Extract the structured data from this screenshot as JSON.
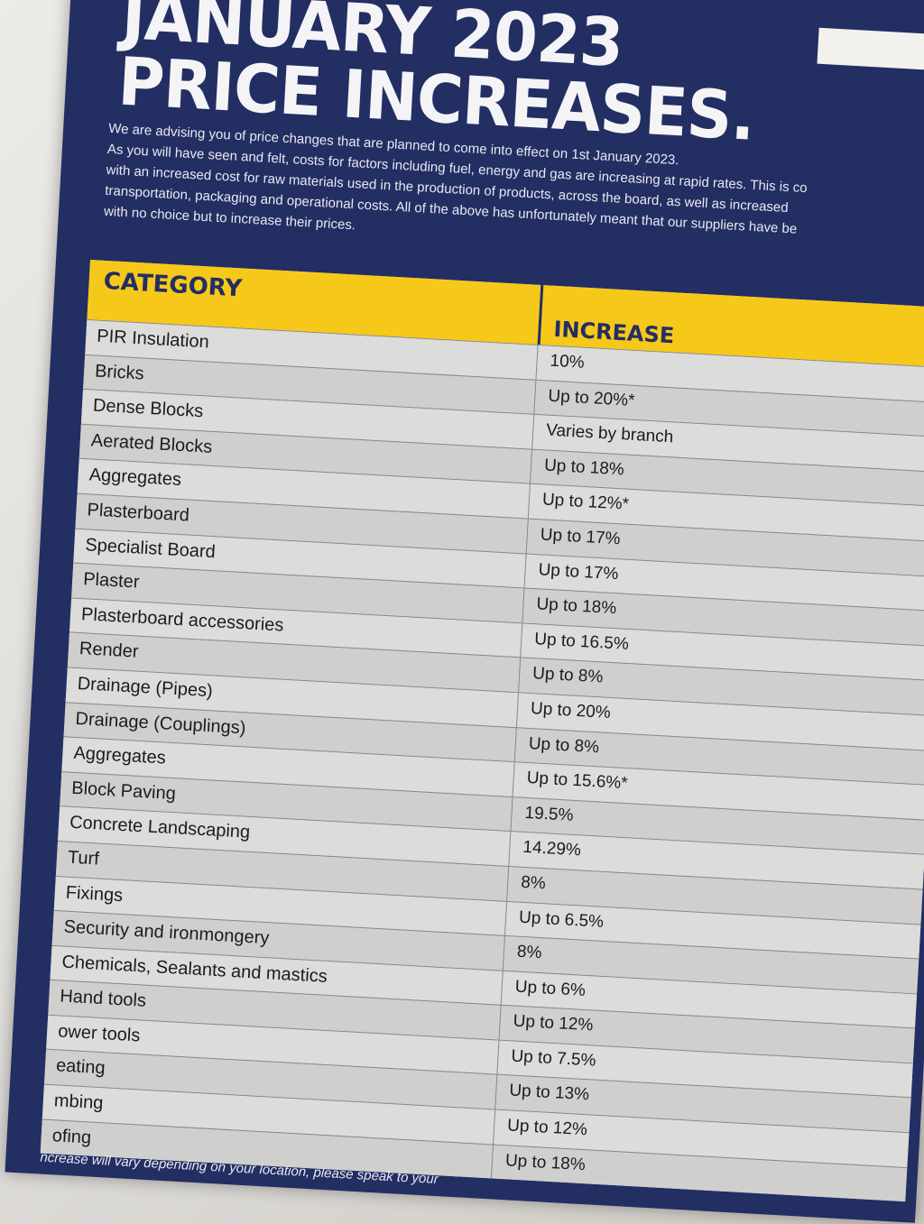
{
  "title_lines": [
    "JANUARY 2023",
    "PRICE INCREASES."
  ],
  "intro": [
    "We are advising you of price changes that are planned to come into effect on 1st January 2023.",
    "As you will have seen and felt, costs for factors including fuel, energy and gas are increasing at rapid rates. This is co",
    "with an increased cost for raw materials used in the production of products, across the board, as well as increased",
    "transportation, packaging and operational costs. All of the above has unfortunately meant that our suppliers have be",
    "with no choice but to increase their prices."
  ],
  "table": {
    "headers": {
      "category": "CATEGORY",
      "increase": "INCREASE"
    },
    "rows": [
      {
        "category": "PIR Insulation",
        "increase": "10%"
      },
      {
        "category": "Bricks",
        "increase": "Up to 20%*"
      },
      {
        "category": "Dense Blocks",
        "increase": "Varies by branch"
      },
      {
        "category": "Aerated Blocks",
        "increase": "Up to 18%"
      },
      {
        "category": "Aggregates",
        "increase": "Up to 12%*"
      },
      {
        "category": "Plasterboard",
        "increase": "Up to 17%"
      },
      {
        "category": "Specialist Board",
        "increase": "Up to 17%"
      },
      {
        "category": "Plaster",
        "increase": "Up to 18%"
      },
      {
        "category": "Plasterboard accessories",
        "increase": "Up to 16.5%"
      },
      {
        "category": "Render",
        "increase": "Up to 8%"
      },
      {
        "category": "Drainage (Pipes)",
        "increase": "Up to 20%"
      },
      {
        "category": "Drainage (Couplings)",
        "increase": "Up to 8%"
      },
      {
        "category": "Aggregates",
        "increase": "Up to 15.6%*"
      },
      {
        "category": "Block Paving",
        "increase": "19.5%"
      },
      {
        "category": "Concrete Landscaping",
        "increase": "14.29%"
      },
      {
        "category": "Turf",
        "increase": "8%"
      },
      {
        "category": "Fixings",
        "increase": "Up to 6.5%"
      },
      {
        "category": "Security and ironmongery",
        "increase": "8%"
      },
      {
        "category": "Chemicals, Sealants and mastics",
        "increase": "Up to 6%"
      },
      {
        "category": "Hand tools",
        "increase": "Up to 12%"
      },
      {
        "category": "ower tools",
        "increase": "Up to 7.5%"
      },
      {
        "category": "eating",
        "increase": "Up to 13%"
      },
      {
        "category": "mbing",
        "increase": "Up to 12%"
      },
      {
        "category": "ofing",
        "increase": "Up to 18%"
      }
    ]
  },
  "footer": "ncrease will vary depending on your location, please speak to your"
}
